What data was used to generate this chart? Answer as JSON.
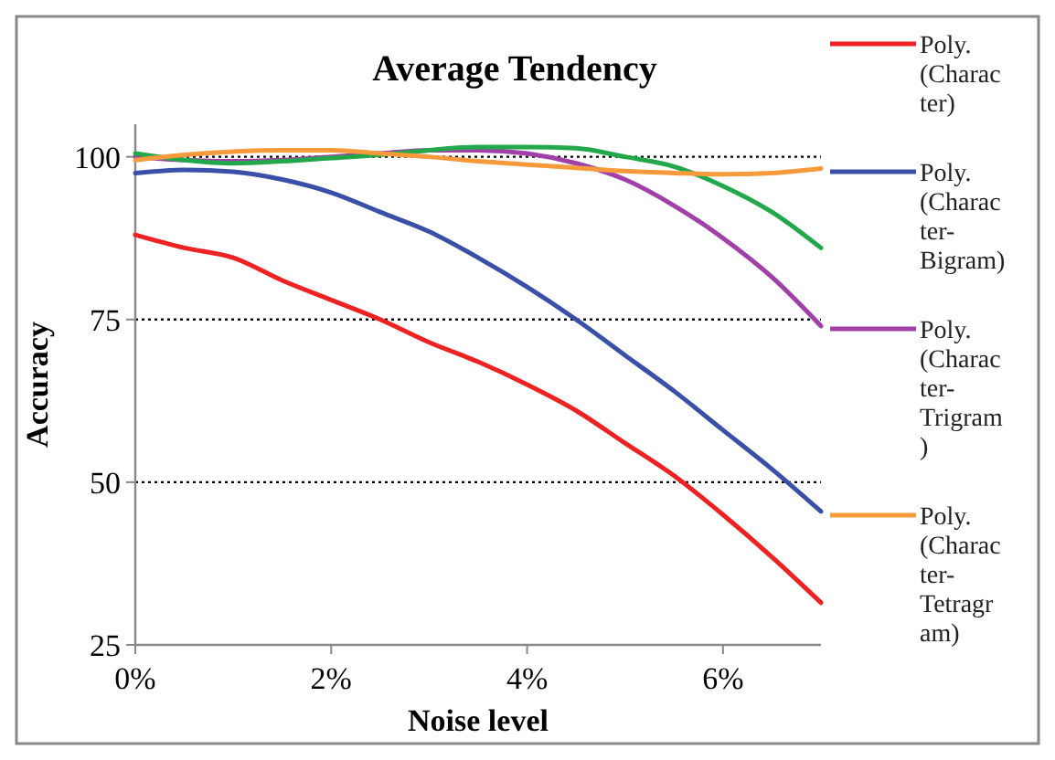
{
  "chart_data": {
    "type": "line",
    "title": "Average Tendency",
    "xlabel": "Noise level",
    "ylabel": "Accuracy",
    "x": [
      0,
      0.5,
      1,
      1.5,
      2,
      2.5,
      3,
      3.5,
      4,
      4.5,
      5,
      5.5,
      6,
      6.5,
      7
    ],
    "xlim": [
      0,
      7
    ],
    "xticks": [
      {
        "value": 0,
        "label": "0%"
      },
      {
        "value": 2,
        "label": "2%"
      },
      {
        "value": 4,
        "label": "4%"
      },
      {
        "value": 6,
        "label": "6%"
      }
    ],
    "ylim": [
      25,
      105
    ],
    "yticks": [
      25,
      50,
      75,
      100
    ],
    "grid": "y",
    "legend": "right",
    "marker": "none",
    "line_style": "solid",
    "series": [
      {
        "name": "Poly. (Character)",
        "color": "#ee2222",
        "values": [
          88,
          86,
          84.5,
          81,
          78,
          75,
          71.5,
          68.5,
          65,
          61,
          56,
          51,
          45,
          38.5,
          31.5
        ]
      },
      {
        "name": "Poly. (Character-Bigram)",
        "color": "#3a4fa8",
        "values": [
          97.5,
          98,
          97.7,
          96.5,
          94.5,
          91.5,
          88.5,
          84.5,
          80,
          75,
          69.5,
          64,
          58,
          52,
          45.5
        ]
      },
      {
        "name": "Poly. (Character-Trigram)",
        "color": "#a040a8",
        "values": [
          100,
          99.5,
          99.3,
          99.5,
          100,
          100.5,
          101,
          101,
          100.5,
          99,
          96.5,
          92.5,
          87.5,
          81.5,
          74
        ]
      },
      {
        "color": "#22a84a",
        "values": [
          100.5,
          99.5,
          99,
          99.3,
          99.8,
          100.3,
          101,
          101.5,
          101.5,
          101.3,
          100,
          98.5,
          95.5,
          91.5,
          86
        ]
      },
      {
        "name": "Poly. (Character-Tetragram)",
        "color": "#f79a3c",
        "values": [
          99.5,
          100.3,
          100.8,
          101,
          101,
          100.5,
          100,
          99.3,
          98.8,
          98.3,
          97.8,
          97.5,
          97.3,
          97.5,
          98.2
        ]
      }
    ]
  }
}
